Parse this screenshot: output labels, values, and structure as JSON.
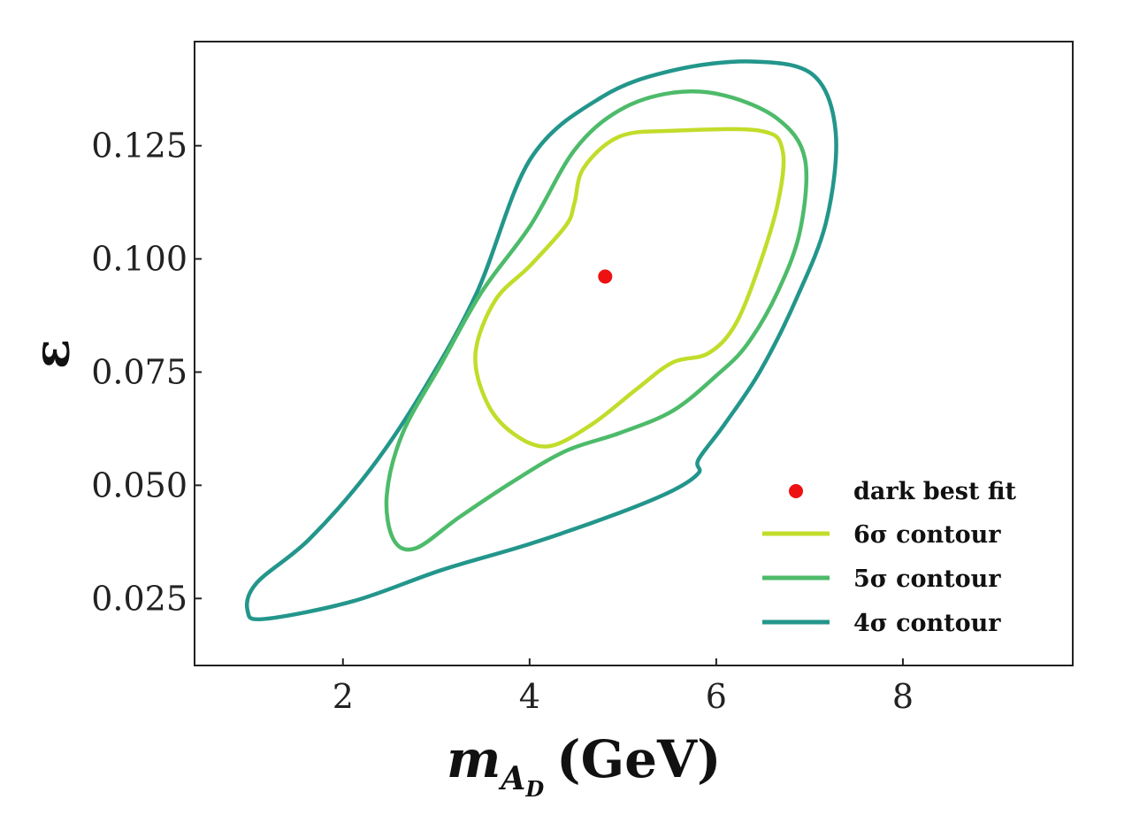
{
  "chart_data": {
    "type": "line",
    "xlabel": "m_{A_D} (GeV)",
    "xlabel_main": "m",
    "xlabel_sub": "A",
    "xlabel_subsub": "D",
    "xlabel_unit": "(GeV)",
    "ylabel": "ε",
    "xlim": [
      0.41,
      9.82
    ],
    "ylim": [
      0.0102,
      0.148
    ],
    "xticks": [
      2,
      4,
      6,
      8
    ],
    "xtick_labels": [
      "2",
      "4",
      "6",
      "8"
    ],
    "yticks": [
      0.025,
      0.05,
      0.075,
      0.1,
      0.125
    ],
    "ytick_labels": [
      "0.025",
      "0.050",
      "0.075",
      "0.100",
      "0.125"
    ],
    "grid": false,
    "legend_position": "bottom-right",
    "best_fit": {
      "name": "dark best fit",
      "x": 4.81,
      "y": 0.0961,
      "color": "#ee1111"
    },
    "series": [
      {
        "name": "6σ contour",
        "label_num": "6",
        "color": "#c2dc2a",
        "closed": true,
        "x": [
          4.58,
          4.96,
          5.53,
          6.47,
          6.71,
          6.66,
          6.43,
          6.19,
          5.91,
          5.53,
          5.15,
          4.67,
          4.2,
          3.82,
          3.54,
          3.42,
          3.63,
          4.01,
          4.39,
          4.48
        ],
        "y": [
          0.1201,
          0.127,
          0.1283,
          0.1283,
          0.124,
          0.1123,
          0.0967,
          0.085,
          0.0791,
          0.0771,
          0.0713,
          0.0635,
          0.0586,
          0.0615,
          0.0684,
          0.0791,
          0.0908,
          0.0986,
          0.1074,
          0.1123
        ]
      },
      {
        "name": "5σ contour",
        "label_num": "5",
        "color": "#4dbb6a",
        "closed": true,
        "x": [
          4.48,
          4.96,
          5.53,
          6.09,
          6.66,
          6.95,
          6.9,
          6.66,
          6.33,
          6.0,
          5.53,
          4.96,
          4.39,
          3.82,
          3.25,
          2.78,
          2.54,
          2.47,
          2.64,
          3.06,
          3.49,
          4.01
        ],
        "y": [
          0.124,
          0.1328,
          0.1367,
          0.1361,
          0.1309,
          0.1221,
          0.1064,
          0.0928,
          0.0811,
          0.0742,
          0.0664,
          0.0615,
          0.0576,
          0.0508,
          0.043,
          0.0361,
          0.0381,
          0.0479,
          0.0615,
          0.0771,
          0.0928,
          0.1074
        ]
      },
      {
        "name": "4σ contour",
        "label_num": "4",
        "color": "#23968b",
        "closed": true,
        "x": [
          4.01,
          4.77,
          5.53,
          6.38,
          7.04,
          7.28,
          7.18,
          6.85,
          6.47,
          6.09,
          5.81,
          5.81,
          5.53,
          4.96,
          4.01,
          3.06,
          2.11,
          1.17,
          0.98,
          1.07,
          1.64,
          2.3,
          2.87,
          3.44
        ],
        "y": [
          0.1221,
          0.1357,
          0.1416,
          0.1436,
          0.1406,
          0.1279,
          0.1084,
          0.0908,
          0.0752,
          0.0635,
          0.0557,
          0.0527,
          0.0488,
          0.0439,
          0.0371,
          0.0313,
          0.0244,
          0.0205,
          0.0221,
          0.0283,
          0.0381,
          0.0537,
          0.0713,
          0.0928
        ]
      }
    ]
  }
}
